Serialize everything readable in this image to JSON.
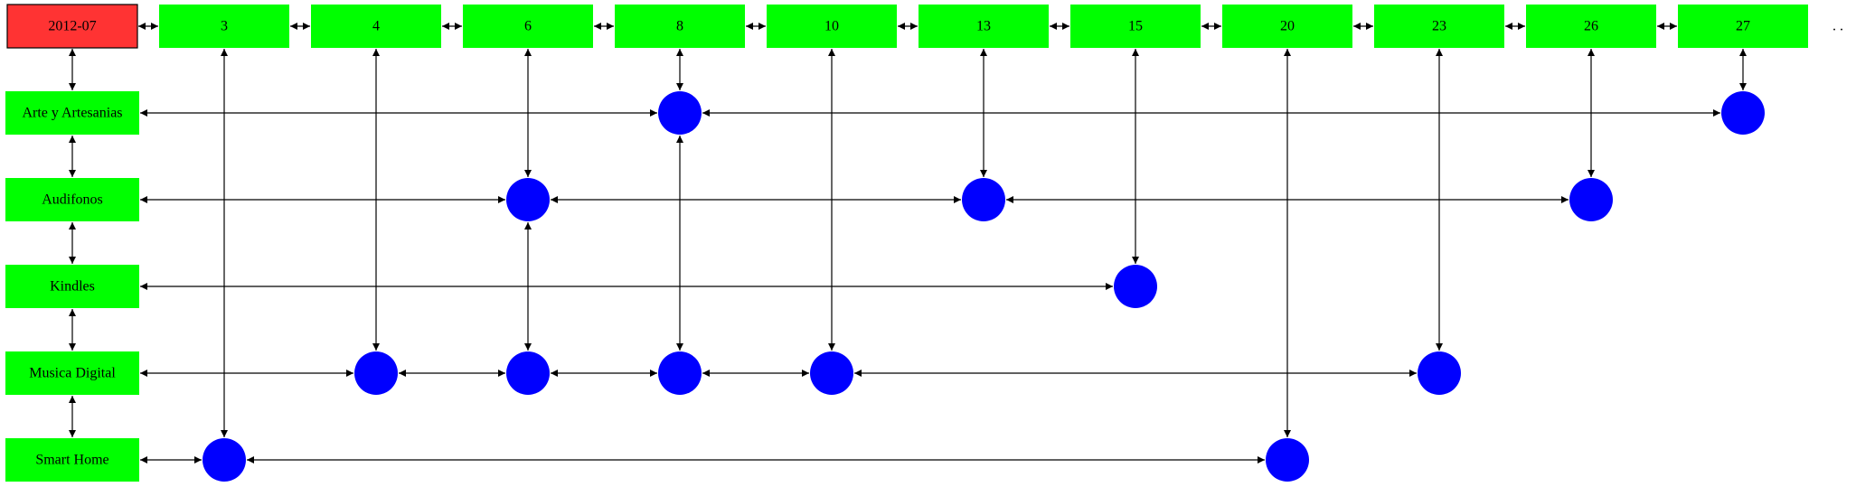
{
  "date_label": "2012-07",
  "top_nodes": [
    "3",
    "4",
    "6",
    "8",
    "10",
    "13",
    "15",
    "20",
    "23",
    "26",
    "27"
  ],
  "trailing_mark": ". .",
  "categories": [
    "Arte y Artesanias",
    "Audifonos",
    "Kindles",
    "Musica Digital",
    "Smart Home"
  ],
  "points": [
    {
      "category": "Arte y Artesanias",
      "columns": [
        "8",
        "27"
      ]
    },
    {
      "category": "Audifonos",
      "columns": [
        "6",
        "13",
        "26"
      ]
    },
    {
      "category": "Kindles",
      "columns": [
        "15"
      ]
    },
    {
      "category": "Musica Digital",
      "columns": [
        "4",
        "6",
        "8",
        "10",
        "23"
      ]
    },
    {
      "category": "Smart Home",
      "columns": [
        "3",
        "20"
      ]
    }
  ],
  "colors": {
    "date_node": "#ff3333",
    "box_node": "#00ff00",
    "point_node": "#0000ff",
    "edge": "#000000",
    "text": "#000000"
  }
}
